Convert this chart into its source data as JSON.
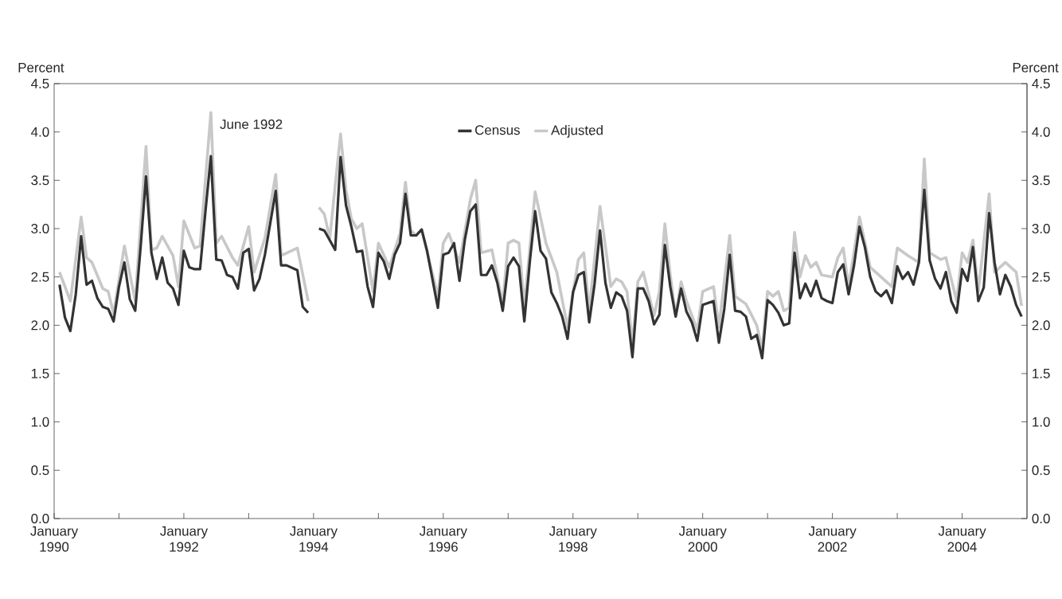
{
  "chart_data": {
    "type": "line",
    "ylabel": "Percent",
    "y2label": "Percent",
    "annotations": [
      {
        "text": "June 1992",
        "x": "1992-06",
        "y": 3.75
      }
    ],
    "xlim": [
      "1990-01",
      "2005-01"
    ],
    "xticks": [
      {
        "value": "1990-01",
        "label": "January 1990"
      },
      {
        "value": "1991-01",
        "label": null
      },
      {
        "value": "1992-01",
        "label": "January 1992"
      },
      {
        "value": "1993-01",
        "label": null
      },
      {
        "value": "1994-01",
        "label": "January 1994"
      },
      {
        "value": "1995-01",
        "label": null
      },
      {
        "value": "1996-01",
        "label": "January 1996"
      },
      {
        "value": "1997-01",
        "label": null
      },
      {
        "value": "1998-01",
        "label": "January 1998"
      },
      {
        "value": "1999-01",
        "label": null
      },
      {
        "value": "2000-01",
        "label": "January 2000"
      },
      {
        "value": "2001-01",
        "label": null
      },
      {
        "value": "2002-01",
        "label": "January 2002"
      },
      {
        "value": "2003-01",
        "label": null
      },
      {
        "value": "2004-01",
        "label": "January 2004"
      }
    ],
    "ylim": [
      0,
      4.5
    ],
    "yticks": [
      {
        "value": 0,
        "label": "0.0"
      },
      0.5,
      {
        "value": 1,
        "label": "1.0"
      },
      1.5,
      {
        "value": 2,
        "label": "2.0"
      },
      2.5,
      {
        "value": 3,
        "label": "3.0"
      },
      3.5,
      {
        "value": 4,
        "label": "4.0"
      },
      4.5
    ],
    "y2lim": [
      0,
      4.5
    ],
    "y2ticks": [
      {
        "value": 0,
        "label": "0.0"
      },
      0.5,
      {
        "value": 1,
        "label": "1.0"
      },
      1.5,
      {
        "value": 2,
        "label": "2.0"
      },
      2.5,
      {
        "value": 3,
        "label": "3.0"
      },
      3.5,
      {
        "value": 4,
        "label": "4.0"
      },
      4.5
    ],
    "legend": "top",
    "series": [
      {
        "name": "Census",
        "color": "#333333",
        "x": [
          "1990-02",
          "1990-03",
          "1990-04",
          "1990-05",
          "1990-06",
          "1990-07",
          "1990-08",
          "1990-09",
          "1990-10",
          "1990-11",
          "1990-12",
          "1991-01",
          "1991-02",
          "1991-03",
          "1991-04",
          "1991-05",
          "1991-06",
          "1991-07",
          "1991-08",
          "1991-09",
          "1991-10",
          "1991-11",
          "1991-12",
          "1992-01",
          "1992-02",
          "1992-03",
          "1992-04",
          "1992-05",
          "1992-06",
          "1992-07",
          "1992-08",
          "1992-09",
          "1992-10",
          "1992-11",
          "1992-12",
          "1993-01",
          "1993-02",
          "1993-03",
          "1993-04",
          "1993-06",
          "1993-07",
          "1993-08",
          "1993-10",
          "1993-11",
          "1993-12",
          "1994-01",
          "1994-02",
          "1994-03",
          "1994-04",
          "1994-05",
          "1994-06",
          "1994-07",
          "1994-08",
          "1994-09",
          "1994-10",
          "1994-11",
          "1994-12",
          "1995-01",
          "1995-02",
          "1995-03",
          "1995-04",
          "1995-05",
          "1995-06",
          "1995-07",
          "1995-08",
          "1995-09",
          "1995-10",
          "1995-12",
          "1996-01",
          "1996-02",
          "1996-03",
          "1996-04",
          "1996-05",
          "1996-06",
          "1996-07",
          "1996-08",
          "1996-09",
          "1996-10",
          "1996-11",
          "1996-12",
          "1997-01",
          "1997-02",
          "1997-03",
          "1997-04",
          "1997-05",
          "1997-06",
          "1997-07",
          "1997-08",
          "1997-09",
          "1997-10",
          "1997-11",
          "1997-12",
          "1998-01",
          "1998-02",
          "1998-03",
          "1998-04",
          "1998-05",
          "1998-06",
          "1998-07",
          "1998-08",
          "1998-09",
          "1998-10",
          "1998-11",
          "1998-12",
          "1999-01",
          "1999-02",
          "1999-03",
          "1999-04",
          "1999-05",
          "1999-06",
          "1999-07",
          "1999-08",
          "1999-09",
          "1999-10",
          "1999-11",
          "1999-12",
          "2000-01",
          "2000-02",
          "2000-03",
          "2000-04",
          "2000-05",
          "2000-06",
          "2000-07",
          "2000-08",
          "2000-09",
          "2000-10",
          "2000-11",
          "2000-12",
          "2001-01",
          "2001-02",
          "2001-03",
          "2001-04",
          "2001-05",
          "2001-06",
          "2001-07",
          "2001-08",
          "2001-09",
          "2001-10",
          "2001-11",
          "2001-12",
          "2002-01",
          "2002-02",
          "2002-03",
          "2002-04",
          "2002-05",
          "2002-06",
          "2002-07",
          "2002-08",
          "2002-09",
          "2002-10",
          "2002-11",
          "2002-12",
          "2003-01",
          "2003-02",
          "2003-03",
          "2003-04",
          "2003-05",
          "2003-06",
          "2003-07",
          "2003-08",
          "2003-09",
          "2003-10",
          "2003-11",
          "2003-12",
          "2004-01",
          "2004-02",
          "2004-03",
          "2004-04",
          "2004-05",
          "2004-06",
          "2004-07",
          "2004-08",
          "2004-09",
          "2004-10",
          "2004-11",
          "2004-12"
        ],
        "values": [
          2.42,
          2.08,
          1.94,
          2.32,
          2.92,
          2.42,
          2.46,
          2.28,
          2.19,
          2.17,
          2.04,
          2.4,
          2.65,
          2.27,
          2.15,
          2.81,
          3.54,
          2.75,
          2.48,
          2.7,
          2.44,
          2.38,
          2.21,
          2.77,
          2.6,
          2.58,
          2.58,
          3.18,
          3.75,
          2.68,
          2.67,
          2.52,
          2.5,
          2.38,
          2.75,
          2.79,
          2.36,
          2.48,
          2.73,
          3.39,
          2.62,
          2.62,
          2.57,
          2.19,
          2.13,
          null,
          3.0,
          2.98,
          2.88,
          2.78,
          3.74,
          3.24,
          3.02,
          2.76,
          2.77,
          2.4,
          2.19,
          2.75,
          2.66,
          2.48,
          2.73,
          2.85,
          3.36,
          2.93,
          2.93,
          2.99,
          2.77,
          2.18,
          2.73,
          2.75,
          2.85,
          2.46,
          2.89,
          3.18,
          3.25,
          2.52,
          2.52,
          2.62,
          2.44,
          2.15,
          2.61,
          2.7,
          2.61,
          2.04,
          2.65,
          3.18,
          2.77,
          2.69,
          2.34,
          2.23,
          2.09,
          1.86,
          2.34,
          2.52,
          2.55,
          2.03,
          2.43,
          2.98,
          2.44,
          2.18,
          2.34,
          2.3,
          2.15,
          1.67,
          2.38,
          2.38,
          2.25,
          2.01,
          2.11,
          2.83,
          2.4,
          2.09,
          2.38,
          2.14,
          2.03,
          1.84,
          2.21,
          2.23,
          2.25,
          1.82,
          2.17,
          2.73,
          2.15,
          2.14,
          2.09,
          1.86,
          1.9,
          1.66,
          2.26,
          2.21,
          2.13,
          2.0,
          2.02,
          2.75,
          2.28,
          2.43,
          2.3,
          2.46,
          2.28,
          2.25,
          2.23,
          2.55,
          2.63,
          2.32,
          2.62,
          3.02,
          2.81,
          2.5,
          2.35,
          2.3,
          2.36,
          2.23,
          2.61,
          2.48,
          2.55,
          2.42,
          2.65,
          3.4,
          2.67,
          2.48,
          2.38,
          2.55,
          2.25,
          2.13,
          2.58,
          2.46,
          2.81,
          2.25,
          2.39,
          3.16,
          2.65,
          2.32,
          2.52,
          2.4,
          2.21,
          2.09
        ]
      },
      {
        "name": "Adjusted",
        "color": "#c8c8c8",
        "x": [
          "1990-02",
          "1990-04",
          "1990-06",
          "1990-07",
          "1990-08",
          "1990-10",
          "1990-11",
          "1990-12",
          "1991-02",
          "1991-04",
          "1991-06",
          "1991-07",
          "1991-08",
          "1991-09",
          "1991-11",
          "1991-12",
          "1992-01",
          "1992-03",
          "1992-04",
          "1992-06",
          "1992-07",
          "1992-08",
          "1992-10",
          "1992-11",
          "1993-01",
          "1993-02",
          "1993-04",
          "1993-06",
          "1993-07",
          "1993-10",
          "1993-12",
          "1994-01",
          "1994-02",
          "1994-03",
          "1994-04",
          "1994-06",
          "1994-07",
          "1994-08",
          "1994-09",
          "1994-10",
          "1994-12",
          "1995-01",
          "1995-03",
          "1995-05",
          "1995-06",
          "1995-07",
          "1995-08",
          "1995-09",
          "1995-12",
          "1996-01",
          "1996-02",
          "1996-04",
          "1996-06",
          "1996-07",
          "1996-08",
          "1996-10",
          "1996-12",
          "1997-01",
          "1997-02",
          "1997-03",
          "1997-04",
          "1997-06",
          "1997-08",
          "1997-10",
          "1997-12",
          "1998-02",
          "1998-03",
          "1998-04",
          "1998-06",
          "1998-08",
          "1998-09",
          "1998-10",
          "1998-11",
          "1998-12",
          "1999-01",
          "1999-02",
          "1999-04",
          "1999-05",
          "1999-06",
          "1999-07",
          "1999-08",
          "1999-09",
          "1999-10",
          "1999-12",
          "2000-01",
          "2000-03",
          "2000-04",
          "2000-06",
          "2000-07",
          "2000-09",
          "2000-11",
          "2000-12",
          "2001-01",
          "2001-02",
          "2001-03",
          "2001-04",
          "2001-05",
          "2001-06",
          "2001-07",
          "2001-08",
          "2001-09",
          "2001-10",
          "2001-11",
          "2002-01",
          "2002-02",
          "2002-03",
          "2002-04",
          "2002-06",
          "2002-08",
          "2002-09",
          "2002-11",
          "2002-12",
          "2003-01",
          "2003-03",
          "2003-05",
          "2003-06",
          "2003-07",
          "2003-09",
          "2003-10",
          "2003-12",
          "2004-01",
          "2004-02",
          "2004-03",
          "2004-04",
          "2004-06",
          "2004-07",
          "2004-09",
          "2004-11",
          "2004-12"
        ],
        "values": [
          2.55,
          2.25,
          3.12,
          2.7,
          2.65,
          2.38,
          2.35,
          2.12,
          2.82,
          2.25,
          3.85,
          2.78,
          2.8,
          2.92,
          2.72,
          2.4,
          3.08,
          2.8,
          2.82,
          4.2,
          2.85,
          2.92,
          2.7,
          2.62,
          3.02,
          2.55,
          2.9,
          3.56,
          2.72,
          2.8,
          2.25,
          null,
          3.22,
          3.15,
          2.9,
          3.98,
          3.4,
          3.1,
          3.0,
          3.05,
          2.35,
          2.85,
          2.6,
          2.95,
          3.48,
          2.98,
          2.93,
          2.99,
          2.3,
          2.85,
          2.95,
          2.65,
          3.3,
          3.5,
          2.75,
          2.78,
          2.22,
          2.85,
          2.88,
          2.85,
          2.2,
          3.38,
          2.85,
          2.55,
          1.98,
          2.68,
          2.75,
          2.15,
          3.23,
          2.4,
          2.48,
          2.45,
          2.35,
          1.8,
          2.45,
          2.55,
          2.1,
          2.35,
          3.05,
          2.52,
          2.1,
          2.45,
          2.25,
          1.95,
          2.35,
          2.4,
          1.98,
          2.93,
          2.3,
          2.22,
          2.0,
          1.75,
          2.35,
          2.3,
          2.35,
          2.15,
          2.18,
          2.96,
          2.5,
          2.72,
          2.6,
          2.65,
          2.52,
          2.5,
          2.7,
          2.8,
          2.4,
          3.12,
          2.6,
          2.55,
          2.45,
          2.4,
          2.8,
          2.72,
          2.65,
          3.72,
          2.75,
          2.68,
          2.7,
          2.25,
          2.75,
          2.65,
          2.88,
          2.35,
          3.36,
          2.55,
          2.65,
          2.55,
          2.2
        ]
      }
    ]
  }
}
